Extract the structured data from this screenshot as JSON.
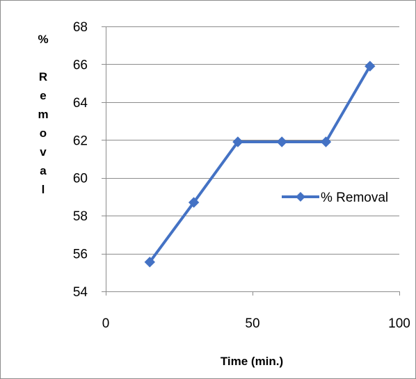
{
  "chart_data": {
    "type": "line",
    "title": "",
    "xlabel": "Time (min.)",
    "ylabel": "% Removal",
    "x_ticks": [
      "0",
      "50",
      "100"
    ],
    "y_ticks": [
      "54",
      "56",
      "58",
      "60",
      "62",
      "64",
      "66",
      "68"
    ],
    "xlim": [
      0,
      100
    ],
    "ylim": [
      54,
      68
    ],
    "grid": "horizontal",
    "legend_position": "right",
    "series": [
      {
        "name": "% Removal",
        "color": "#4472C4",
        "marker": "diamond",
        "x": [
          15,
          30,
          45,
          60,
          75,
          90
        ],
        "y": [
          55.55,
          58.7,
          61.9,
          61.9,
          61.9,
          65.9
        ]
      }
    ]
  }
}
